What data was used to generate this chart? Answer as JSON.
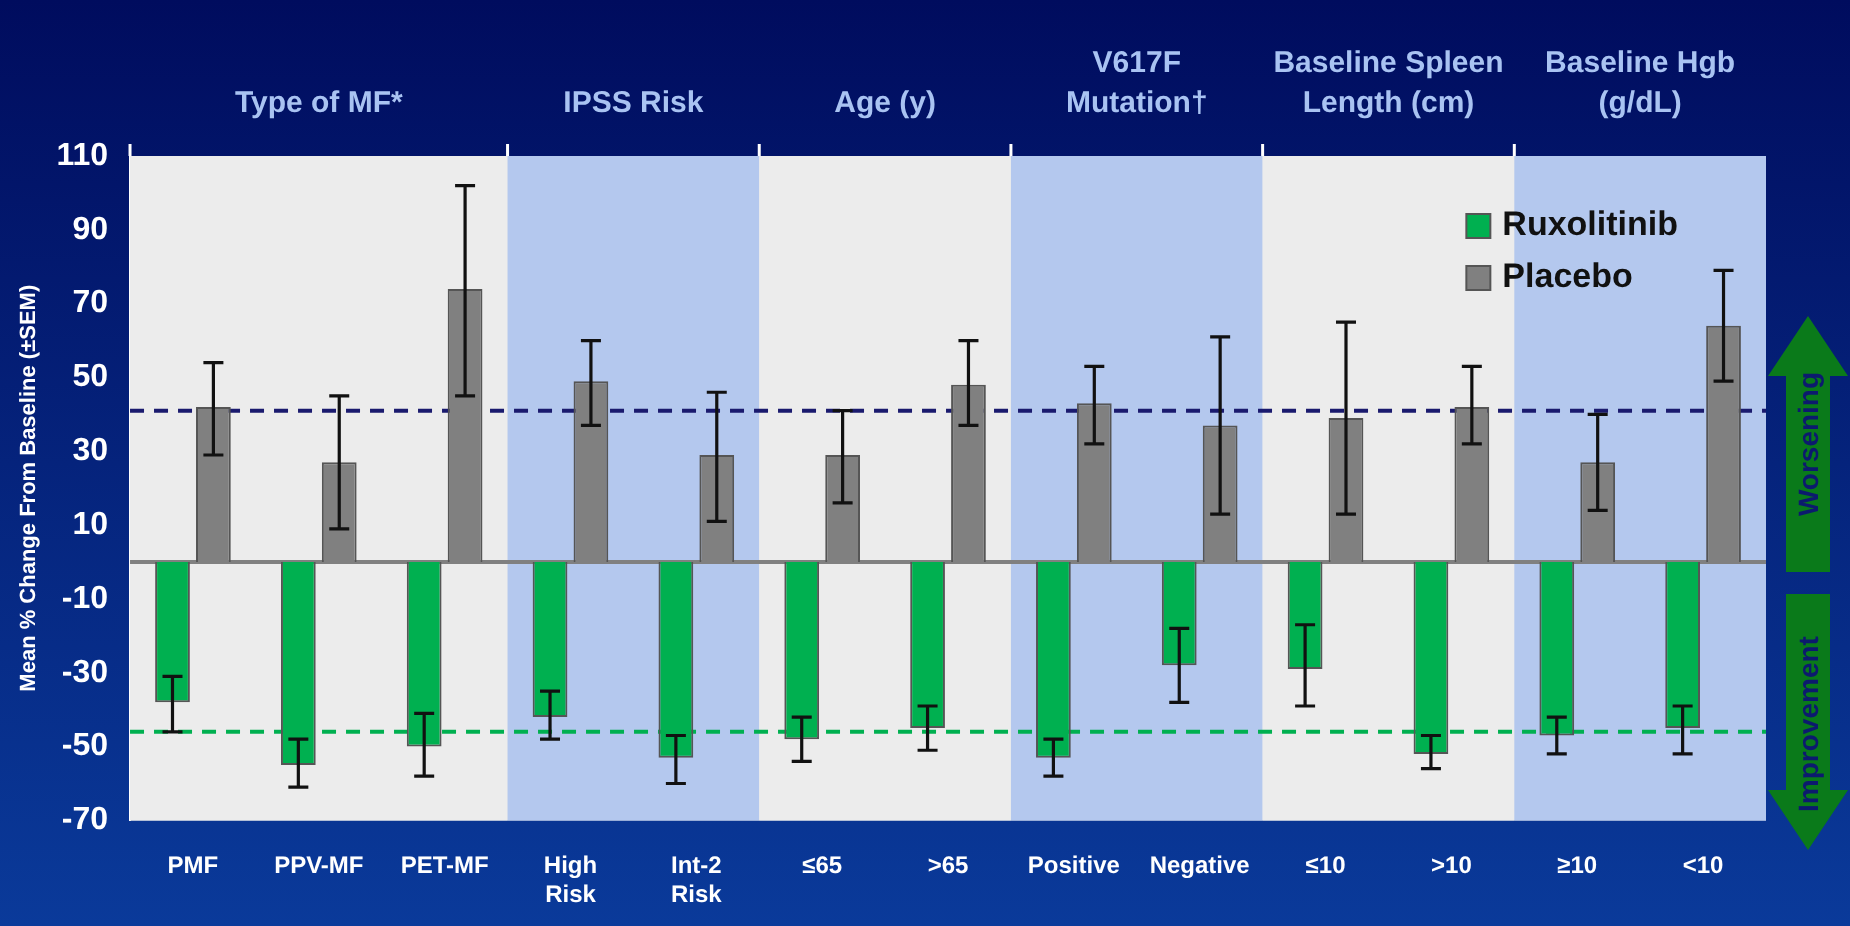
{
  "chart_data": {
    "type": "bar",
    "ylabel": "Mean % Change From Baseline (±SEM)",
    "categories": [
      "PMF",
      "PPV-MF",
      "PET-MF",
      "High Risk",
      "Int-2 Risk",
      "≤65",
      ">65",
      "Positive",
      "Negative",
      "≤10",
      ">10",
      "≥10",
      "<10"
    ],
    "series": [
      {
        "name": "Ruxolitinib",
        "color": "#00b050",
        "values": [
          -38,
          -55,
          -50,
          -42,
          -53,
          -48,
          -45,
          -53,
          -28,
          -29,
          -52,
          -47,
          -45
        ],
        "errors": [
          [
            -46,
            -31
          ],
          [
            -61,
            -48
          ],
          [
            -58,
            -41
          ],
          [
            -48,
            -35
          ],
          [
            -60,
            -47
          ],
          [
            -54,
            -42
          ],
          [
            -51,
            -39
          ],
          [
            -58,
            -48
          ],
          [
            -38,
            -18
          ],
          [
            -39,
            -17
          ],
          [
            -56,
            -47
          ],
          [
            -52,
            -42
          ],
          [
            -52,
            -39
          ]
        ]
      },
      {
        "name": "Placebo",
        "color": "#808080",
        "values": [
          42,
          27,
          74,
          49,
          29,
          29,
          48,
          43,
          37,
          39,
          42,
          27,
          64
        ],
        "errors": [
          [
            29,
            54
          ],
          [
            9,
            45
          ],
          [
            45,
            102
          ],
          [
            37,
            60
          ],
          [
            11,
            46
          ],
          [
            16,
            41
          ],
          [
            37,
            60
          ],
          [
            32,
            53
          ],
          [
            13,
            61
          ],
          [
            13,
            65
          ],
          [
            32,
            53
          ],
          [
            14,
            40
          ],
          [
            49,
            79
          ]
        ]
      }
    ],
    "ylim": [
      -70,
      110
    ],
    "yticks": [
      -70,
      -50,
      -30,
      -10,
      10,
      30,
      50,
      70,
      90,
      110
    ],
    "grid": false,
    "legend": "top right",
    "ref_lines": [
      {
        "axis": "y",
        "value": 41,
        "color": "#1a1a6e",
        "line_style": "dashed"
      },
      {
        "axis": "y",
        "value": -46,
        "color": "#00b050",
        "line_style": "dashed"
      }
    ],
    "bands": [
      {
        "axis": "x",
        "from": "PMF",
        "to": "PET-MF",
        "label": "Type of MF*",
        "color": "#ececec"
      },
      {
        "axis": "x",
        "from": "High Risk",
        "to": "Int-2 Risk",
        "label": "IPSS Risk",
        "color": "#b4c8ee"
      },
      {
        "axis": "x",
        "from": "≤65",
        "to": ">65",
        "label": "Age (y)",
        "color": "#ececec"
      },
      {
        "axis": "x",
        "from": "Positive",
        "to": "Negative",
        "label": "V617F Mutation†",
        "color": "#b4c8ee"
      },
      {
        "axis": "x",
        "from": "≤10",
        "to": ">10",
        "label": "Baseline Spleen Length (cm)",
        "color": "#ececec"
      },
      {
        "axis": "x",
        "from": "≥10",
        "to": "<10",
        "label": "Baseline Hgb (g/dL)",
        "color": "#b4c8ee"
      }
    ],
    "annotations": [
      "Worsening",
      "Improvement"
    ]
  }
}
